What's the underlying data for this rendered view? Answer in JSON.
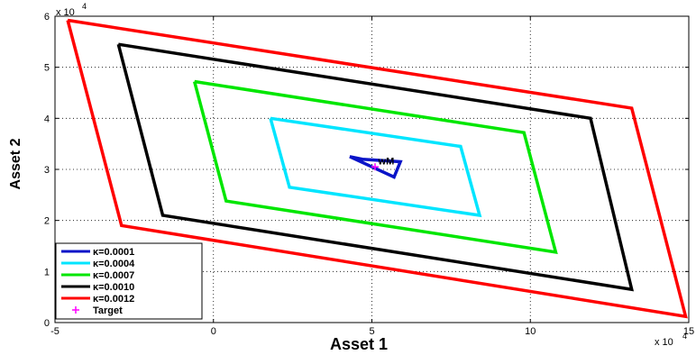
{
  "chart_data": {
    "type": "line",
    "xlabel": "Asset 1",
    "ylabel": "Asset 2",
    "x_scale_label": "x 10",
    "x_scale_exp": "4",
    "y_scale_label": "x 10",
    "y_scale_exp": "4",
    "xlim": [
      -5,
      15
    ],
    "ylim": [
      0,
      6
    ],
    "x_ticks": [
      -5,
      0,
      5,
      10,
      15
    ],
    "x_tick_labels": [
      "-5",
      "0",
      "5",
      "10",
      "15"
    ],
    "y_ticks": [
      0,
      1,
      2,
      3,
      4,
      5,
      6
    ],
    "y_tick_labels": [
      "0",
      "1",
      "2",
      "3",
      "4",
      "5",
      "6"
    ],
    "grid": true,
    "legend_position": "bottom-left",
    "series": [
      {
        "name": "κ=0.0001",
        "color": "#0a14c8",
        "x": [
          4.3,
          4.7,
          5.9,
          5.7,
          4.3
        ],
        "y": [
          3.25,
          3.2,
          3.15,
          2.85,
          3.25
        ]
      },
      {
        "name": "κ=0.0004",
        "color": "#00e5ff",
        "x": [
          1.8,
          7.8,
          8.4,
          2.4,
          1.8
        ],
        "y": [
          4.0,
          3.45,
          2.1,
          2.65,
          4.0
        ]
      },
      {
        "name": "κ=0.0007",
        "color": "#00e600",
        "x": [
          -0.6,
          9.8,
          10.8,
          0.4,
          -0.6
        ],
        "y": [
          4.72,
          3.72,
          1.38,
          2.38,
          4.72
        ]
      },
      {
        "name": "κ=0.0010",
        "color": "#000000",
        "x": [
          -3.0,
          11.9,
          13.2,
          -1.6,
          -3.0
        ],
        "y": [
          5.45,
          4.0,
          0.65,
          2.1,
          5.45
        ]
      },
      {
        "name": "κ=0.0012",
        "color": "#ff0000",
        "x": [
          -4.6,
          13.2,
          14.9,
          -2.9,
          -4.6
        ],
        "y": [
          5.92,
          4.2,
          0.12,
          1.9,
          5.92
        ]
      }
    ],
    "points": [
      {
        "name": "Target",
        "color": "#ff00ff",
        "x": 5.1,
        "y": 3.05,
        "marker": "+"
      }
    ],
    "annotations": [
      {
        "text": "wM",
        "x": 5.2,
        "y": 3.1
      }
    ]
  }
}
